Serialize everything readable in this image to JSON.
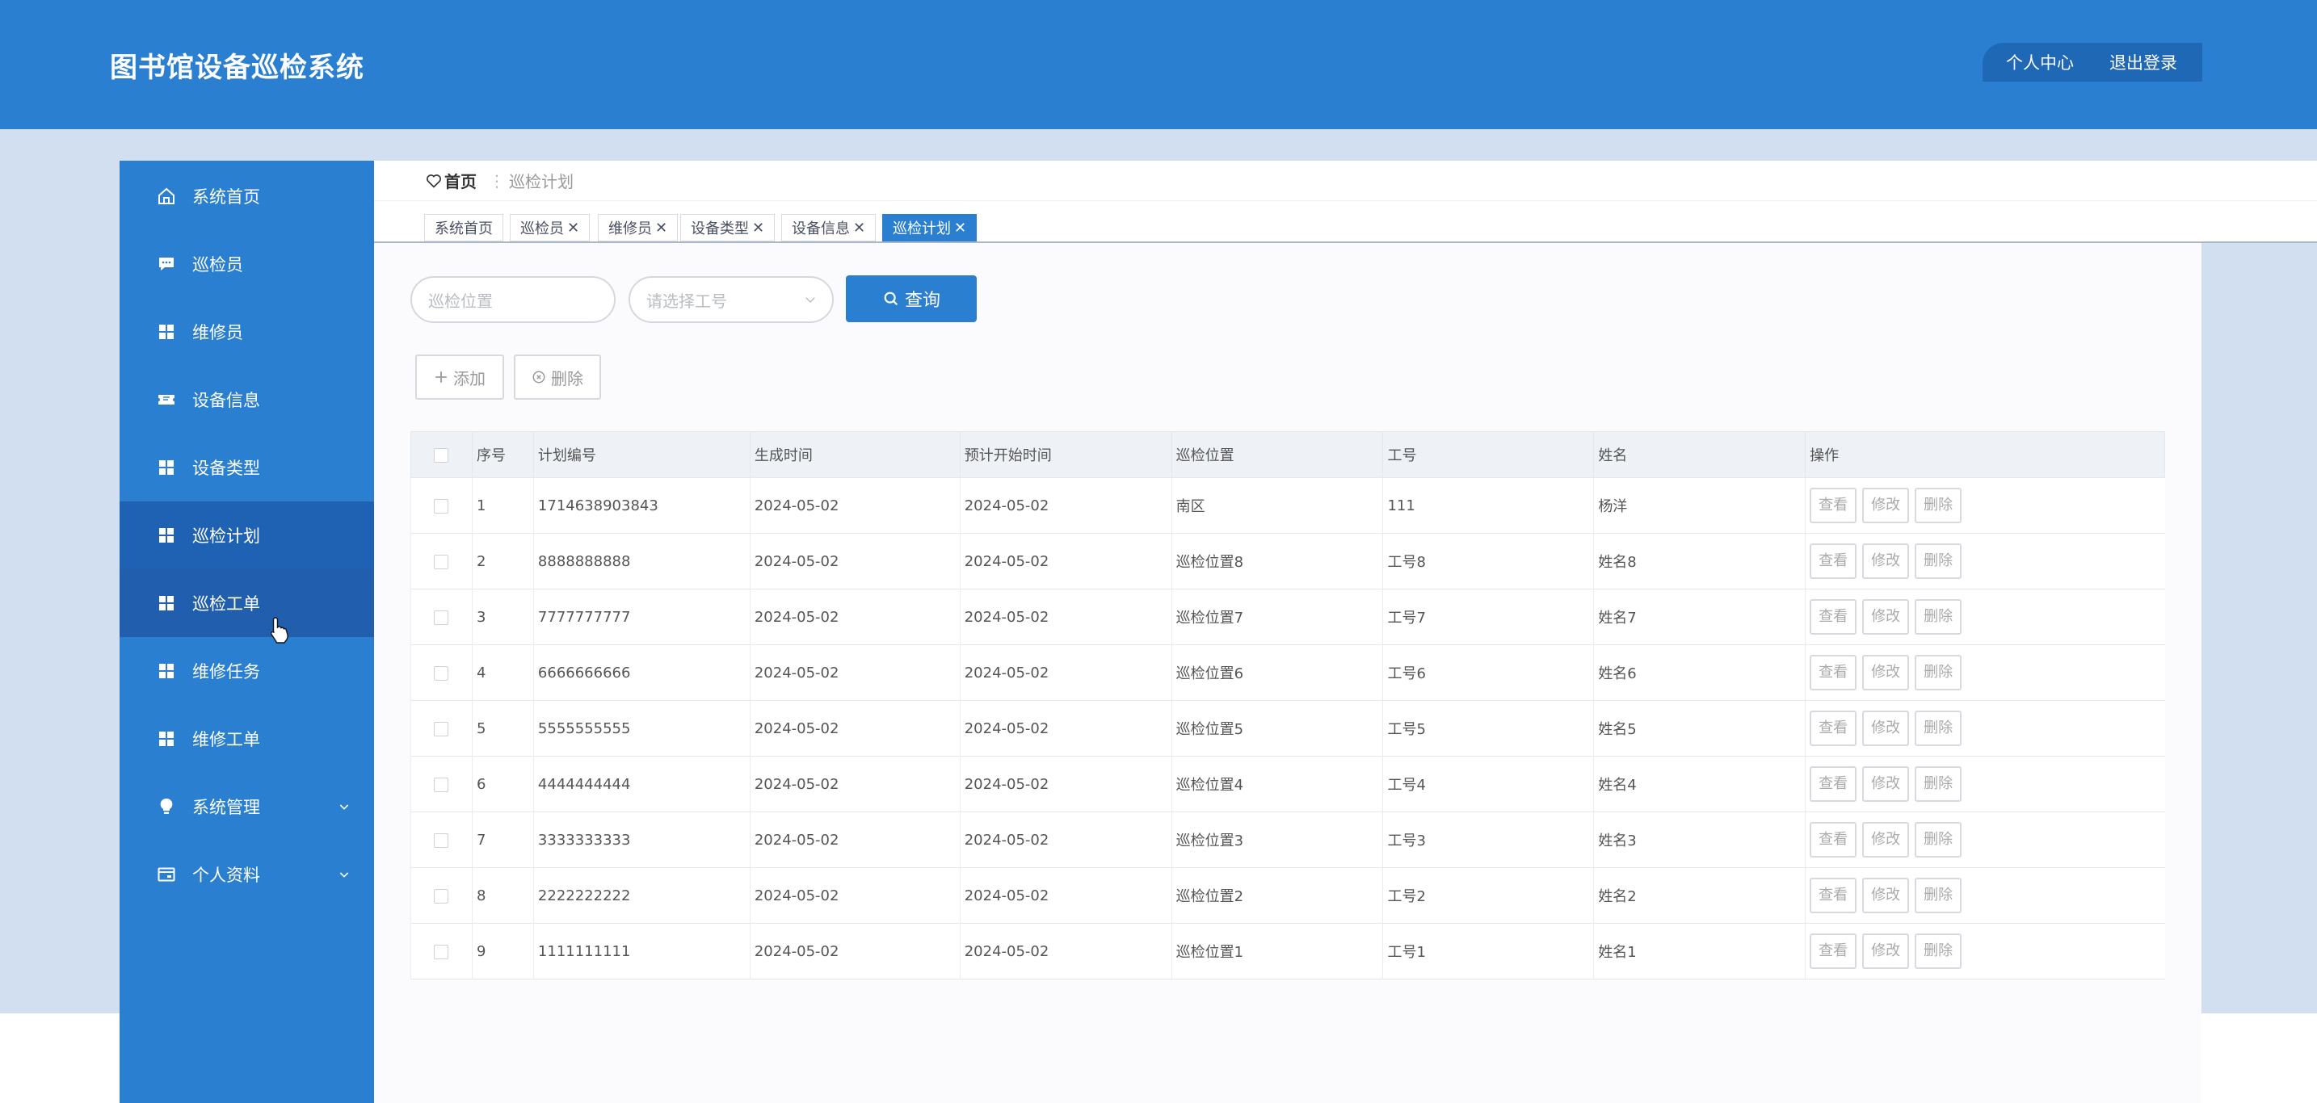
{
  "app": {
    "title": "图书馆设备巡检系统"
  },
  "header": {
    "profile_label": "个人中心",
    "logout_label": "退出登录"
  },
  "sidebar": {
    "items": [
      {
        "label": "系统首页",
        "icon": "home-icon",
        "state": "normal",
        "expandable": false
      },
      {
        "label": "巡检员",
        "icon": "chat-icon",
        "state": "normal",
        "expandable": false
      },
      {
        "label": "维修员",
        "icon": "grid-icon",
        "state": "normal",
        "expandable": false
      },
      {
        "label": "设备信息",
        "icon": "ticket-icon",
        "state": "normal",
        "expandable": false
      },
      {
        "label": "设备类型",
        "icon": "grid-icon",
        "state": "normal",
        "expandable": false
      },
      {
        "label": "巡检计划",
        "icon": "grid-icon",
        "state": "active",
        "expandable": false
      },
      {
        "label": "巡检工单",
        "icon": "grid-icon",
        "state": "hover",
        "expandable": false
      },
      {
        "label": "维修任务",
        "icon": "grid-icon",
        "state": "normal",
        "expandable": false
      },
      {
        "label": "维修工单",
        "icon": "grid-icon",
        "state": "normal",
        "expandable": false
      },
      {
        "label": "系统管理",
        "icon": "bulb-icon",
        "state": "normal",
        "expandable": true
      },
      {
        "label": "个人资料",
        "icon": "card-icon",
        "state": "normal",
        "expandable": true
      }
    ]
  },
  "breadcrumb": {
    "home": "首页",
    "separator": "⋮",
    "current": "巡检计划"
  },
  "tabs": [
    {
      "label": "系统首页",
      "closable": false,
      "active": false
    },
    {
      "label": "巡检员",
      "closable": true,
      "active": false
    },
    {
      "label": "维修员",
      "closable": true,
      "active": false
    },
    {
      "label": "设备类型",
      "closable": true,
      "active": false
    },
    {
      "label": "设备信息",
      "closable": true,
      "active": false
    },
    {
      "label": "巡检计划",
      "closable": true,
      "active": true
    }
  ],
  "search": {
    "location_placeholder": "巡检位置",
    "worker_placeholder": "请选择工号",
    "query_label": "查询"
  },
  "toolbar": {
    "add_label": "添加",
    "delete_label": "删除"
  },
  "table": {
    "columns": [
      "序号",
      "计划编号",
      "生成时间",
      "预计开始时间",
      "巡检位置",
      "工号",
      "姓名",
      "操作"
    ],
    "actions": [
      "查看",
      "修改",
      "删除"
    ],
    "rows": [
      [
        "1",
        "1714638903843",
        "2024-05-02",
        "2024-05-02",
        "南区",
        "111",
        "杨洋"
      ],
      [
        "2",
        "8888888888",
        "2024-05-02",
        "2024-05-02",
        "巡检位置8",
        "工号8",
        "姓名8"
      ],
      [
        "3",
        "7777777777",
        "2024-05-02",
        "2024-05-02",
        "巡检位置7",
        "工号7",
        "姓名7"
      ],
      [
        "4",
        "6666666666",
        "2024-05-02",
        "2024-05-02",
        "巡检位置6",
        "工号6",
        "姓名6"
      ],
      [
        "5",
        "5555555555",
        "2024-05-02",
        "2024-05-02",
        "巡检位置5",
        "工号5",
        "姓名5"
      ],
      [
        "6",
        "4444444444",
        "2024-05-02",
        "2024-05-02",
        "巡检位置4",
        "工号4",
        "姓名4"
      ],
      [
        "7",
        "3333333333",
        "2024-05-02",
        "2024-05-02",
        "巡检位置3",
        "工号3",
        "姓名3"
      ],
      [
        "8",
        "2222222222",
        "2024-05-02",
        "2024-05-02",
        "巡检位置2",
        "工号2",
        "姓名2"
      ],
      [
        "9",
        "1111111111",
        "2024-05-02",
        "2024-05-02",
        "巡检位置1",
        "工号1",
        "姓名1"
      ]
    ]
  },
  "colors": {
    "primary": "#2b7fd0",
    "sidebar_active": "#1f62b3",
    "band": "#d2dff0"
  }
}
